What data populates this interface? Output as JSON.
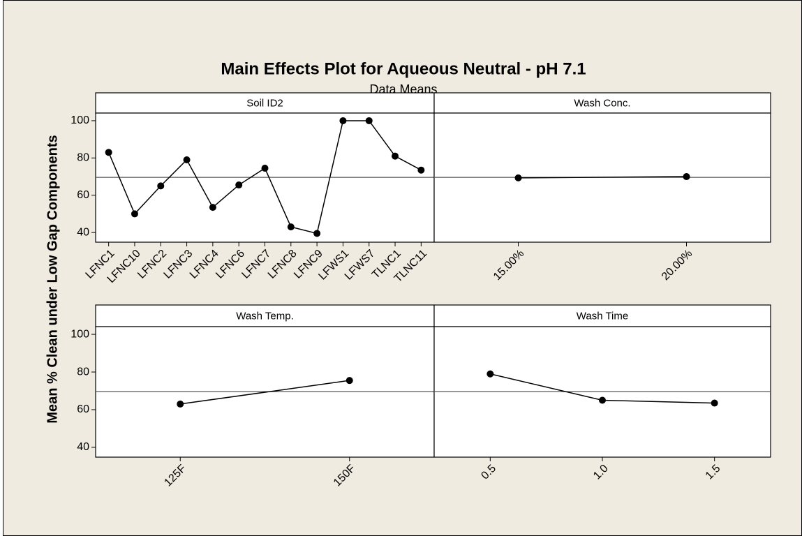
{
  "chart_data": {
    "type": "line",
    "title": "Main Effects Plot for Aqueous Neutral - pH 7.1",
    "subtitle": "Data Means",
    "y_label": "Mean % Clean under Low Gap Components",
    "ylim": [
      34.8,
      104.1
    ],
    "yticks": [
      40,
      60,
      80,
      100
    ],
    "reference_line": 69.6,
    "color": "#000000",
    "panels": [
      {
        "title": "Soil ID2",
        "categories": [
          "LFNC1",
          "LFNC10",
          "LFNC2",
          "LFNC3",
          "LFNC4",
          "LFNC6",
          "LFNC7",
          "LFNC8",
          "LFNC9",
          "LFWS1",
          "LFWS7",
          "TLNC1",
          "TLNC11"
        ],
        "values": [
          83,
          50,
          65,
          79,
          53.5,
          65.5,
          74.5,
          43,
          39.5,
          100,
          100,
          81,
          73.5
        ]
      },
      {
        "title": "Wash Conc.",
        "categories": [
          "15.00%",
          "20.00%"
        ],
        "values": [
          69.3,
          70
        ]
      },
      {
        "title": "Wash Temp.",
        "categories": [
          "125F",
          "150F"
        ],
        "values": [
          63,
          75.5
        ]
      },
      {
        "title": "Wash Time",
        "categories": [
          "0.5",
          "1.0",
          "1.5"
        ],
        "values": [
          79,
          65,
          63.5
        ]
      }
    ]
  }
}
